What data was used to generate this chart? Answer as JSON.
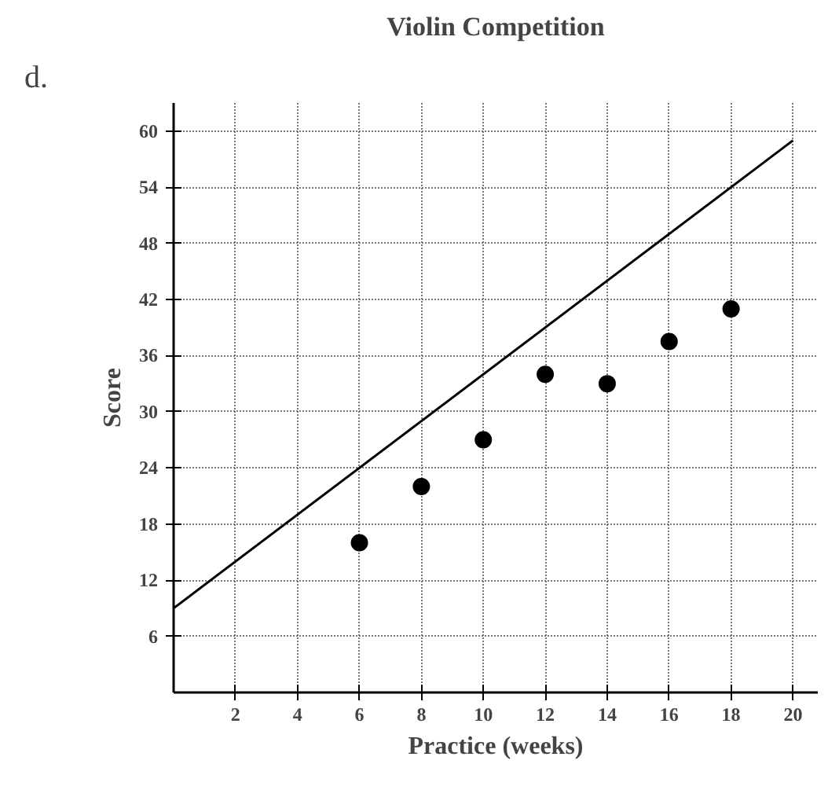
{
  "chart_data": {
    "type": "scatter",
    "title": "Violin Competition",
    "xlabel": "Practice (weeks)",
    "ylabel": "Score",
    "annotations": [
      "d."
    ],
    "series": [
      {
        "marker": "circle",
        "color": "#000000",
        "x": [
          6,
          8,
          10,
          12,
          14,
          16,
          18
        ],
        "values": [
          16,
          22,
          27,
          34,
          33,
          37.5,
          41
        ]
      },
      {
        "type": "line",
        "color": "#000000",
        "x": [
          0,
          20
        ],
        "values": [
          9,
          59
        ]
      }
    ],
    "xlim": [
      0,
      20.8
    ],
    "ylim": [
      0,
      63
    ],
    "xticks": [
      2,
      4,
      6,
      8,
      10,
      12,
      14,
      16,
      18,
      20
    ],
    "yticks": [
      6,
      12,
      18,
      24,
      30,
      36,
      42,
      48,
      54,
      60
    ],
    "grid": true
  }
}
